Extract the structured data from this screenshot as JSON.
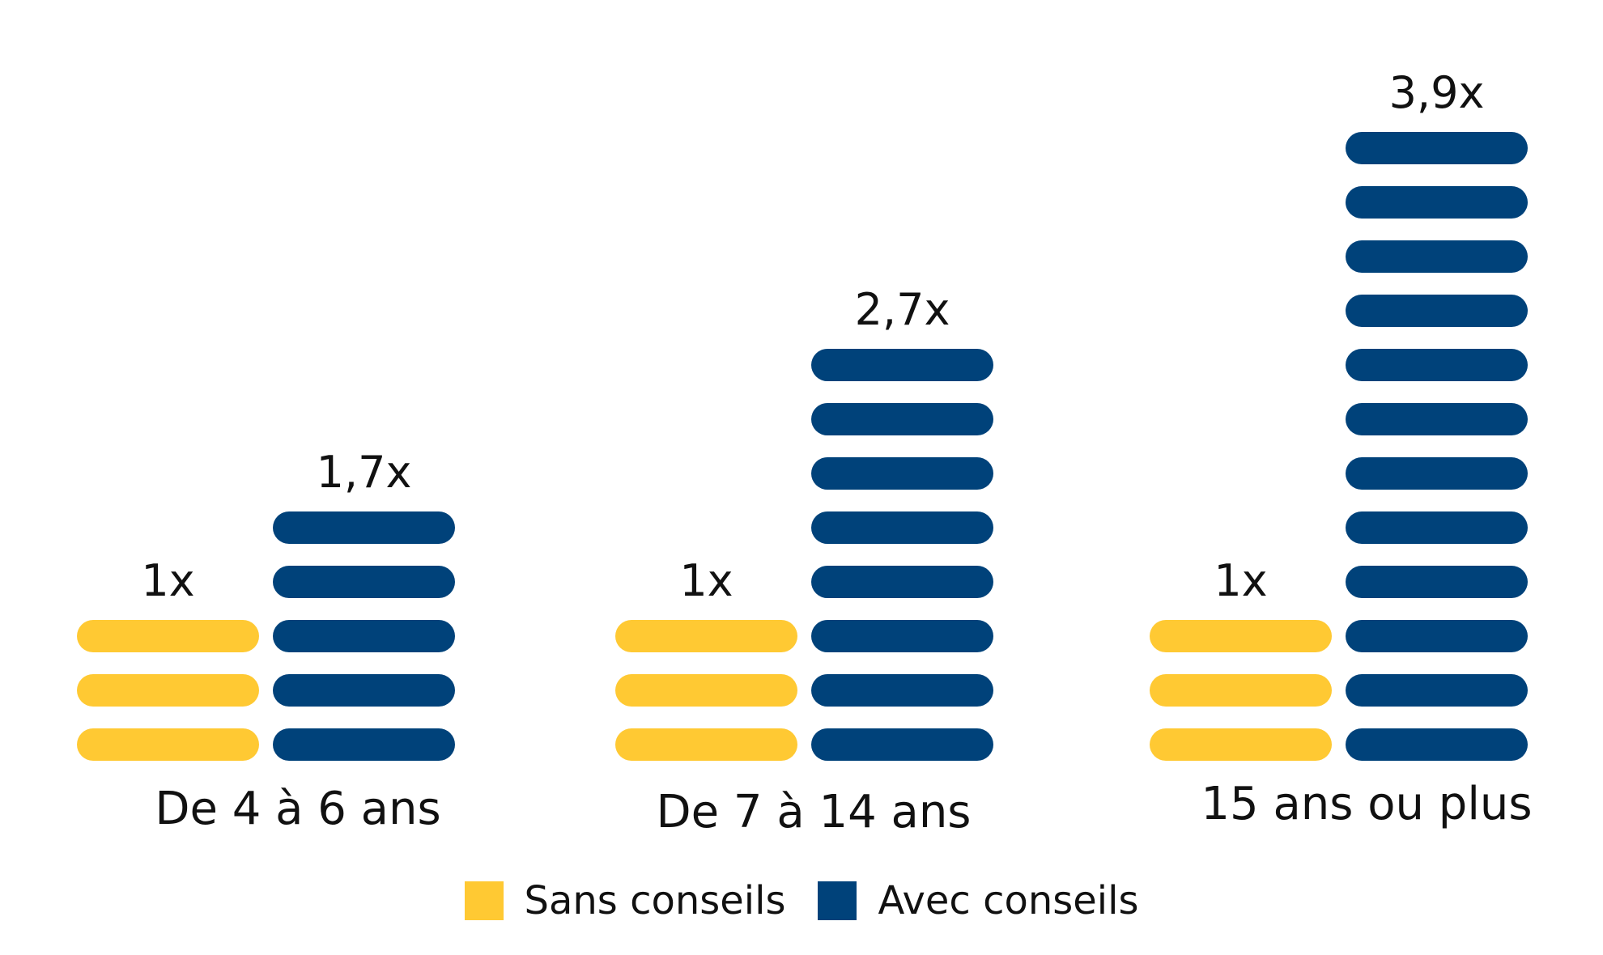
{
  "chart_data": {
    "type": "bar",
    "categories": [
      "De 4 à 6 ans",
      "De 7 à 14 ans",
      "15 ans ou plus"
    ],
    "series": [
      {
        "name": "Sans conseils",
        "color": "#FFC933",
        "values": [
          1,
          1,
          1
        ],
        "labels": [
          "1x",
          "1x",
          "1x"
        ]
      },
      {
        "name": "Avec conseils",
        "color": "#00427A",
        "values": [
          1.7,
          2.7,
          3.9
        ],
        "labels": [
          "1,7x",
          "2,7x",
          "3,9x"
        ]
      }
    ],
    "title": "",
    "xlabel": "",
    "ylabel": "",
    "legend_position": "bottom-center",
    "grid": false
  }
}
